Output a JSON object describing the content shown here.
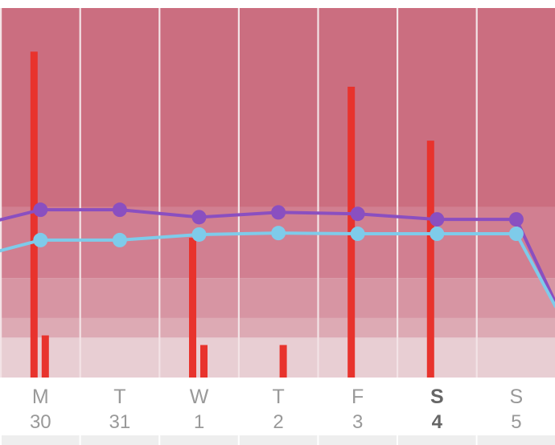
{
  "chart_data": {
    "type": "combo",
    "days": [
      {
        "letter": "M",
        "date": "30",
        "today": false
      },
      {
        "letter": "T",
        "date": "31",
        "today": false
      },
      {
        "letter": "W",
        "date": "1",
        "today": false
      },
      {
        "letter": "T",
        "date": "2",
        "today": false
      },
      {
        "letter": "F",
        "date": "3",
        "today": false
      },
      {
        "letter": "S",
        "date": "4",
        "today": true
      },
      {
        "letter": "S",
        "date": "5",
        "today": false
      }
    ],
    "y_range": [
      0,
      100
    ],
    "bands": [
      {
        "from": 0,
        "to": 10.8,
        "color": "#e8ced3"
      },
      {
        "from": 10.8,
        "to": 16.1,
        "color": "#ddaab4"
      },
      {
        "from": 16.1,
        "to": 26.9,
        "color": "#d795a3"
      },
      {
        "from": 26.9,
        "to": 46.2,
        "color": "#d17f91"
      },
      {
        "from": 46.2,
        "to": 100,
        "color": "#cb6e80"
      }
    ],
    "bars": [
      {
        "day": 0,
        "offset": 0,
        "value": 88.2
      },
      {
        "day": 0,
        "offset": 1,
        "value": 11.4
      },
      {
        "day": 2,
        "offset": 0,
        "value": 37.8
      },
      {
        "day": 2,
        "offset": 1,
        "value": 8.8
      },
      {
        "day": 3,
        "offset": 1,
        "value": 8.8
      },
      {
        "day": 4,
        "offset": 0,
        "value": 78.7
      },
      {
        "day": 5,
        "offset": 0,
        "value": 64.1
      }
    ],
    "series": [
      {
        "color": "#8a4fc0",
        "points": [
          [
            -0.6,
            42.2
          ],
          [
            0,
            45.4
          ],
          [
            1,
            45.4
          ],
          [
            2,
            43.4
          ],
          [
            3,
            44.7
          ],
          [
            4,
            44.3
          ],
          [
            5,
            42.8
          ],
          [
            6,
            42.8
          ],
          [
            6.5,
            20
          ]
        ]
      },
      {
        "color": "#7ecbea",
        "points": [
          [
            -0.6,
            33.8
          ],
          [
            0,
            37.2
          ],
          [
            1,
            37.2
          ],
          [
            2,
            38.7
          ],
          [
            3,
            39.1
          ],
          [
            4,
            38.9
          ],
          [
            5,
            38.9
          ],
          [
            6,
            38.9
          ],
          [
            6.5,
            19
          ]
        ]
      }
    ],
    "bar_color": "#e8332d"
  }
}
